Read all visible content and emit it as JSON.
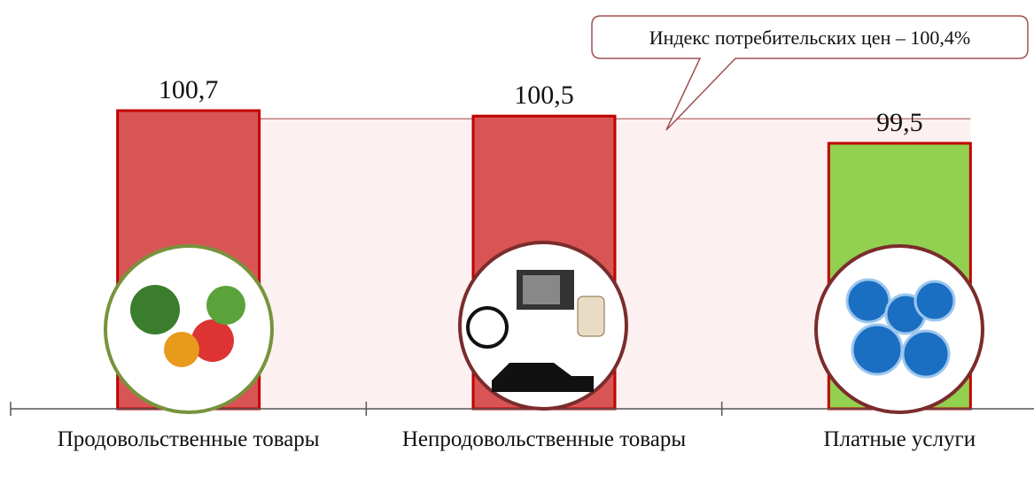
{
  "chart_data": {
    "type": "bar",
    "categories": [
      "Продовольственные товары",
      "Непродовольственные товары",
      "Платные услуги"
    ],
    "values": [
      100.7,
      100.5,
      99.5
    ],
    "value_labels": [
      "100,7",
      "100,5",
      "99,5"
    ],
    "colors": [
      "#d95555",
      "#d95555",
      "#92d050"
    ],
    "ylim": [
      89.75,
      102
    ],
    "reference": {
      "value": 100.4,
      "label": "Индекс потребительских цен – 100,4%"
    }
  }
}
